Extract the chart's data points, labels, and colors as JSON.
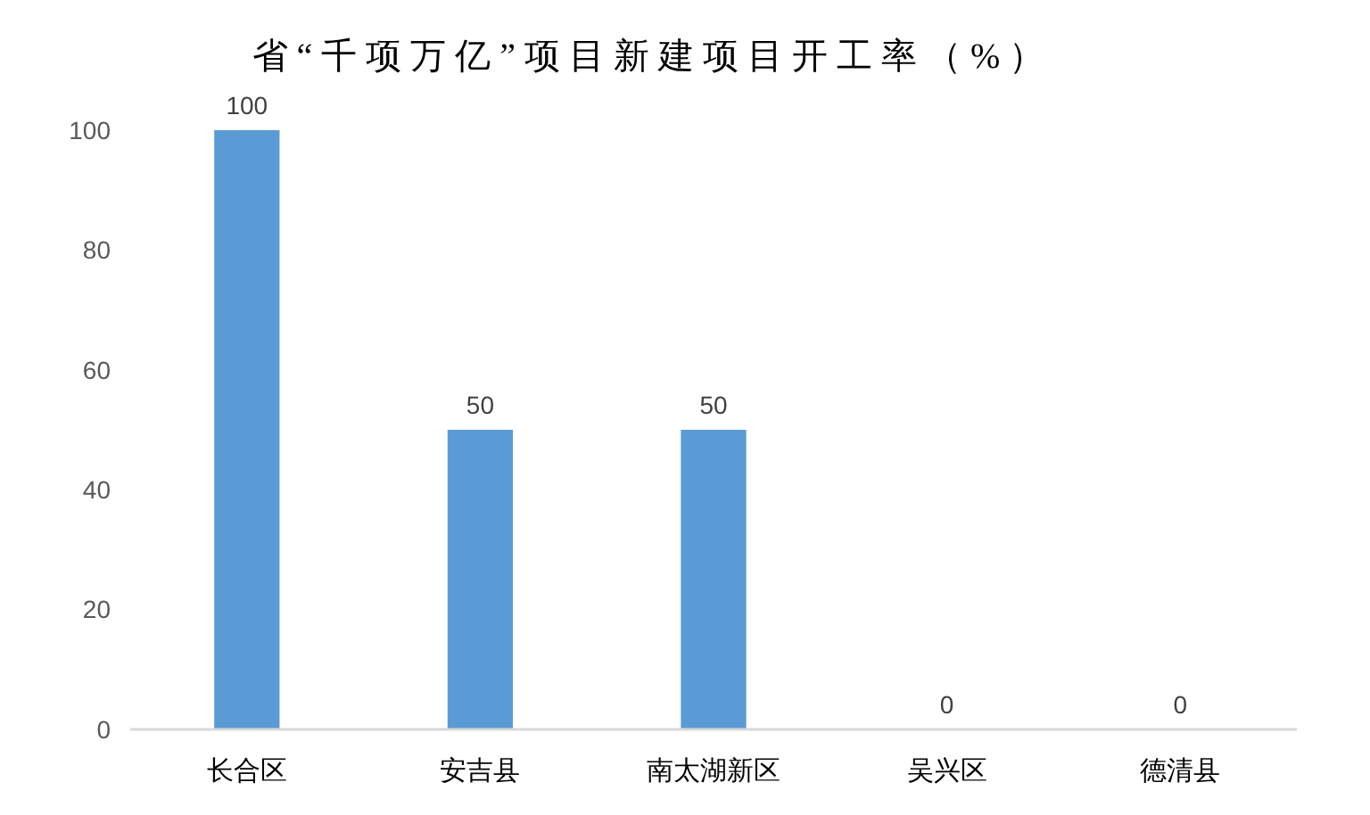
{
  "chart_data": {
    "type": "bar",
    "title": "省“千项万亿”项目新建项目开工率（%）",
    "categories": [
      "长合区",
      "安吉县",
      "南太湖新区",
      "吴兴区",
      "德清县"
    ],
    "values": [
      100,
      50,
      50,
      0,
      0
    ],
    "color": "#5b9bd5",
    "ylim": [
      0,
      100
    ],
    "yticks": [
      0,
      20,
      40,
      60,
      80,
      100
    ],
    "data_labels": true
  }
}
